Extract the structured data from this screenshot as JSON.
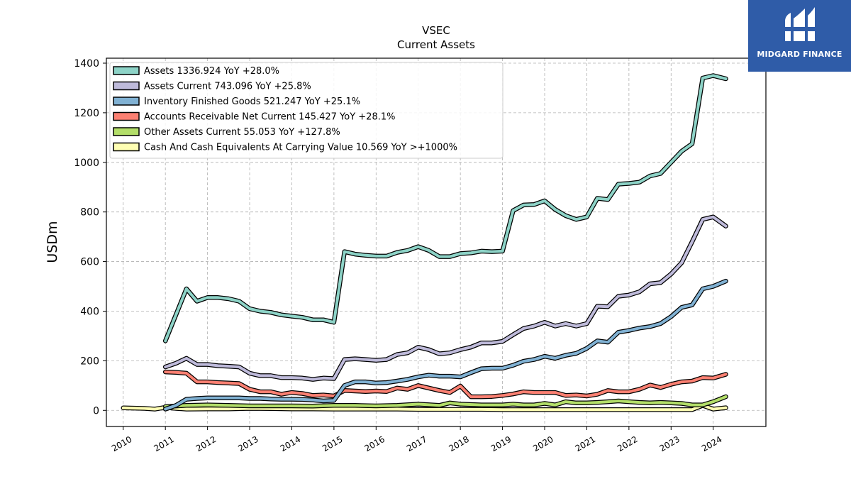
{
  "brand": {
    "name": "MIDGARD FINANCE",
    "bg_color": "#2f5ca8"
  },
  "chart_data": {
    "type": "line",
    "title": "VSEC",
    "subtitle": "Current  Assets",
    "ylabel": "USDm",
    "xlabel": "",
    "xlim": [
      2009.6,
      2025.25
    ],
    "ylim": [
      -65,
      1420
    ],
    "x_ticks": [
      2010,
      2011,
      2012,
      2013,
      2014,
      2015,
      2016,
      2017,
      2018,
      2019,
      2020,
      2021,
      2022,
      2023,
      2024
    ],
    "x_tick_labels": [
      "2010",
      "2011",
      "2012",
      "2013",
      "2014",
      "2015",
      "2016",
      "2017",
      "2018",
      "2019",
      "2020",
      "2021",
      "2022",
      "2023",
      "2024"
    ],
    "y_ticks": [
      0,
      200,
      400,
      600,
      800,
      1000,
      1200,
      1400
    ],
    "y_tick_labels": [
      "0",
      "200",
      "400",
      "600",
      "800",
      "1000",
      "1200",
      "1400"
    ],
    "grid": true,
    "legend_position": "top-left",
    "series": [
      {
        "name": "Assets  1336.924 YoY +28.0%",
        "color": "#8dd3c7",
        "x": [
          2011.0,
          2011.5,
          2011.75,
          2012.0,
          2012.25,
          2012.5,
          2012.75,
          2013.0,
          2013.25,
          2013.5,
          2013.75,
          2014.0,
          2014.25,
          2014.5,
          2014.75,
          2015.0,
          2015.25,
          2015.5,
          2015.75,
          2016.0,
          2016.25,
          2016.5,
          2016.75,
          2017.0,
          2017.25,
          2017.5,
          2017.75,
          2018.0,
          2018.25,
          2018.5,
          2018.75,
          2019.0,
          2019.25,
          2019.5,
          2019.75,
          2020.0,
          2020.25,
          2020.5,
          2020.75,
          2021.0,
          2021.25,
          2021.5,
          2021.75,
          2022.0,
          2022.25,
          2022.5,
          2022.75,
          2023.0,
          2023.25,
          2023.5,
          2023.75,
          2024.0,
          2024.3
        ],
        "values": [
          280,
          490,
          440,
          455,
          455,
          450,
          440,
          410,
          400,
          395,
          385,
          380,
          375,
          365,
          365,
          355,
          640,
          630,
          625,
          622,
          622,
          637,
          645,
          660,
          645,
          620,
          620,
          632,
          635,
          642,
          640,
          642,
          805,
          828,
          830,
          845,
          810,
          785,
          770,
          780,
          855,
          850,
          912,
          915,
          920,
          945,
          955,
          1000,
          1045,
          1075,
          1340,
          1350,
          1336.924
        ]
      },
      {
        "name": "Assets Current  743.096 YoY +25.8%",
        "color": "#bebada",
        "x": [
          2011.0,
          2011.25,
          2011.5,
          2011.75,
          2012.0,
          2012.25,
          2012.5,
          2012.75,
          2013.0,
          2013.25,
          2013.5,
          2013.75,
          2014.0,
          2014.25,
          2014.5,
          2014.75,
          2015.0,
          2015.25,
          2015.5,
          2015.75,
          2016.0,
          2016.25,
          2016.5,
          2016.75,
          2017.0,
          2017.25,
          2017.5,
          2017.75,
          2018.0,
          2018.25,
          2018.5,
          2018.75,
          2019.0,
          2019.25,
          2019.5,
          2019.75,
          2020.0,
          2020.25,
          2020.5,
          2020.75,
          2021.0,
          2021.25,
          2021.5,
          2021.75,
          2022.0,
          2022.25,
          2022.5,
          2022.75,
          2023.0,
          2023.25,
          2023.5,
          2023.75,
          2024.0,
          2024.3
        ],
        "values": [
          175,
          190,
          210,
          185,
          185,
          180,
          178,
          175,
          150,
          140,
          140,
          132,
          132,
          130,
          125,
          130,
          128,
          205,
          208,
          205,
          202,
          205,
          225,
          232,
          255,
          245,
          228,
          232,
          245,
          255,
          272,
          272,
          278,
          305,
          330,
          340,
          355,
          340,
          350,
          340,
          350,
          420,
          418,
          460,
          465,
          478,
          510,
          515,
          550,
          595,
          680,
          770,
          780,
          743.096
        ]
      },
      {
        "name": "Inventory Finished Goods  521.247 YoY +25.1%",
        "color": "#80b1d3",
        "x": [
          2011.0,
          2011.25,
          2011.5,
          2011.75,
          2012.0,
          2012.25,
          2012.5,
          2012.75,
          2013.0,
          2013.25,
          2013.5,
          2013.75,
          2014.0,
          2014.25,
          2014.5,
          2014.75,
          2015.0,
          2015.25,
          2015.5,
          2015.75,
          2016.0,
          2016.25,
          2016.5,
          2016.75,
          2017.0,
          2017.25,
          2017.5,
          2017.75,
          2018.0,
          2018.25,
          2018.5,
          2018.75,
          2019.0,
          2019.25,
          2019.5,
          2019.75,
          2020.0,
          2020.25,
          2020.5,
          2020.75,
          2021.0,
          2021.25,
          2021.5,
          2021.75,
          2022.0,
          2022.25,
          2022.5,
          2022.75,
          2023.0,
          2023.25,
          2023.5,
          2023.75,
          2024.0,
          2024.3
        ],
        "values": [
          5,
          20,
          45,
          48,
          50,
          50,
          50,
          50,
          48,
          48,
          46,
          45,
          45,
          44,
          42,
          38,
          40,
          100,
          115,
          115,
          110,
          112,
          118,
          125,
          135,
          142,
          138,
          138,
          135,
          152,
          168,
          170,
          170,
          182,
          198,
          205,
          218,
          210,
          222,
          230,
          250,
          280,
          275,
          315,
          322,
          332,
          338,
          350,
          378,
          415,
          425,
          490,
          500,
          521.247
        ]
      },
      {
        "name": "Accounts Receivable Net Current  145.427 YoY +28.1%",
        "color": "#fb8072",
        "x": [
          2011.0,
          2011.25,
          2011.5,
          2011.75,
          2012.0,
          2012.25,
          2012.5,
          2012.75,
          2013.0,
          2013.25,
          2013.5,
          2013.75,
          2014.0,
          2014.25,
          2014.5,
          2014.75,
          2015.0,
          2015.25,
          2015.5,
          2015.75,
          2016.0,
          2016.25,
          2016.5,
          2016.75,
          2017.0,
          2017.25,
          2017.5,
          2017.75,
          2018.0,
          2018.25,
          2018.5,
          2018.75,
          2019.0,
          2019.25,
          2019.5,
          2019.75,
          2020.0,
          2020.25,
          2020.5,
          2020.75,
          2021.0,
          2021.25,
          2021.5,
          2021.75,
          2022.0,
          2022.25,
          2022.5,
          2022.75,
          2023.0,
          2023.25,
          2023.5,
          2023.75,
          2024.0,
          2024.3
        ],
        "values": [
          155,
          153,
          150,
          115,
          115,
          112,
          110,
          108,
          85,
          75,
          75,
          65,
          72,
          68,
          60,
          62,
          58,
          80,
          78,
          76,
          78,
          76,
          90,
          85,
          100,
          90,
          80,
          72,
          98,
          55,
          55,
          56,
          60,
          66,
          75,
          72,
          72,
          72,
          60,
          62,
          58,
          65,
          80,
          75,
          75,
          85,
          102,
          92,
          105,
          115,
          118,
          132,
          130,
          145.427
        ]
      },
      {
        "name": "Other Assets Current  55.053 YoY +127.8%",
        "color": "#b3de69",
        "x": [
          2011.0,
          2011.5,
          2012.0,
          2012.5,
          2013.0,
          2013.5,
          2014.0,
          2014.5,
          2015.0,
          2015.5,
          2016.0,
          2016.5,
          2017.0,
          2017.5,
          2017.75,
          2018.0,
          2018.5,
          2019.0,
          2019.25,
          2019.5,
          2019.75,
          2020.0,
          2020.25,
          2020.5,
          2020.75,
          2021.0,
          2021.25,
          2021.5,
          2021.75,
          2022.0,
          2022.25,
          2022.5,
          2022.75,
          2023.0,
          2023.25,
          2023.5,
          2023.75,
          2024.0,
          2024.3
        ],
        "values": [
          15,
          20,
          22,
          20,
          18,
          18,
          18,
          17,
          20,
          20,
          18,
          20,
          25,
          20,
          30,
          25,
          22,
          22,
          25,
          22,
          22,
          28,
          22,
          35,
          30,
          30,
          32,
          35,
          38,
          35,
          32,
          30,
          32,
          30,
          28,
          22,
          22,
          35,
          55.053
        ]
      },
      {
        "name": "Cash And Cash Equivalents At Carrying Value  10.569 YoY >+1000%",
        "color": "#ffffb3",
        "x": [
          2010.0,
          2010.5,
          2010.75,
          2011.0,
          2011.25,
          2011.5,
          2012.0,
          2012.5,
          2013.0,
          2013.5,
          2014.0,
          2014.5,
          2015.0,
          2015.5,
          2016.0,
          2016.5,
          2017.0,
          2017.5,
          2018.0,
          2018.5,
          2019.0,
          2019.5,
          2020.0,
          2020.5,
          2021.0,
          2021.5,
          2022.0,
          2022.5,
          2023.0,
          2023.5,
          2023.75,
          2024.0,
          2024.3
        ],
        "values": [
          10,
          8,
          5,
          12,
          8,
          5,
          6,
          6,
          8,
          7,
          6,
          6,
          5,
          5,
          5,
          5,
          4,
          4,
          4,
          4,
          3,
          3,
          3,
          3,
          3,
          3,
          3,
          3,
          3,
          3,
          20,
          5,
          10.569
        ]
      }
    ]
  }
}
